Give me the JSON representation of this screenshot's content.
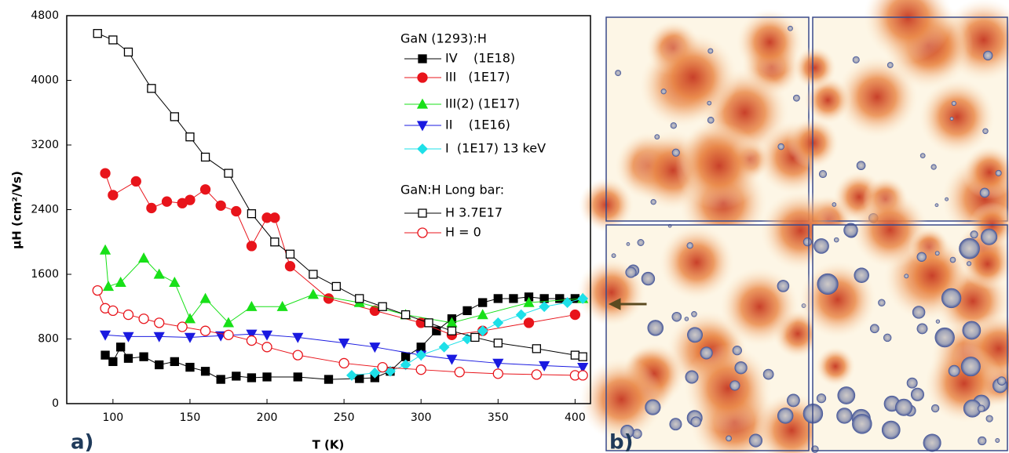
{
  "chart_data": {
    "type": "scatter",
    "x_label": "T (K)",
    "y_label": "μH (cm²/Vs)",
    "panel_labels": [
      "a)",
      "b)"
    ],
    "legend_titles": [
      "GaN (1293):H",
      "GaN:H    Long bar:"
    ],
    "xlim": [
      70,
      410
    ],
    "xticks": [
      100,
      150,
      200,
      250,
      300,
      350,
      400
    ],
    "ylim": [
      0,
      4800
    ],
    "yticks": [
      0,
      800,
      1600,
      2400,
      3200,
      4000,
      4800
    ],
    "series": [
      {
        "name": "IV    (1E18)",
        "color": "#000000",
        "marker": "square",
        "filled": true,
        "group": 0,
        "x": [
          95,
          100,
          105,
          110,
          120,
          130,
          140,
          150,
          160,
          170,
          180,
          190,
          200,
          220,
          240,
          260,
          270,
          280,
          290,
          300,
          310,
          320,
          330,
          340,
          350,
          360,
          370,
          380,
          390,
          400
        ],
        "values": [
          600,
          520,
          700,
          560,
          580,
          480,
          520,
          450,
          400,
          300,
          340,
          320,
          330,
          330,
          300,
          310,
          320,
          400,
          580,
          700,
          900,
          1050,
          1150,
          1250,
          1300,
          1300,
          1320,
          1300,
          1300,
          1300
        ]
      },
      {
        "name": "III   (1E17)",
        "color": "#e8141b",
        "marker": "circle",
        "filled": true,
        "group": 0,
        "x": [
          95,
          100,
          115,
          125,
          135,
          145,
          150,
          160,
          170,
          180,
          190,
          200,
          205,
          215,
          240,
          270,
          300,
          320,
          340,
          370,
          400
        ],
        "values": [
          2850,
          2580,
          2750,
          2420,
          2500,
          2480,
          2520,
          2650,
          2450,
          2380,
          1950,
          2300,
          2300,
          1700,
          1300,
          1150,
          1000,
          850,
          900,
          1000,
          1100
        ]
      },
      {
        "name": "III(2) (1E17)",
        "color": "#18e018",
        "marker": "triangle-up",
        "filled": true,
        "group": 0,
        "x": [
          95,
          97,
          105,
          120,
          130,
          140,
          150,
          160,
          175,
          190,
          210,
          230,
          260,
          290,
          320,
          340,
          370,
          405
        ],
        "values": [
          1900,
          1450,
          1500,
          1800,
          1600,
          1500,
          1050,
          1300,
          1000,
          1200,
          1200,
          1350,
          1250,
          1100,
          1000,
          1100,
          1250,
          1300
        ]
      },
      {
        "name": "II    (1E16)",
        "color": "#1a1ae0",
        "marker": "triangle-down",
        "filled": true,
        "group": 0,
        "x": [
          95,
          110,
          130,
          150,
          170,
          190,
          200,
          220,
          250,
          270,
          300,
          320,
          350,
          380,
          405
        ],
        "values": [
          850,
          830,
          830,
          820,
          840,
          860,
          850,
          820,
          750,
          700,
          600,
          550,
          500,
          470,
          450
        ]
      },
      {
        "name": "I  (1E17) 13 keV",
        "color": "#1ee0e8",
        "marker": "diamond",
        "filled": true,
        "group": 0,
        "x": [
          255,
          270,
          280,
          290,
          300,
          315,
          330,
          340,
          350,
          365,
          380,
          395,
          405
        ],
        "values": [
          350,
          380,
          400,
          480,
          600,
          700,
          800,
          900,
          1000,
          1100,
          1200,
          1250,
          1300
        ]
      },
      {
        "name": "H 3.7E17",
        "color": "#000000",
        "marker": "square",
        "filled": false,
        "group": 1,
        "x": [
          90,
          100,
          110,
          125,
          140,
          150,
          160,
          175,
          190,
          205,
          215,
          230,
          245,
          260,
          275,
          290,
          305,
          320,
          335,
          350,
          375,
          400,
          405
        ],
        "values": [
          4580,
          4500,
          4350,
          3900,
          3550,
          3300,
          3050,
          2850,
          2350,
          2000,
          1850,
          1600,
          1450,
          1300,
          1200,
          1100,
          1000,
          900,
          820,
          750,
          680,
          600,
          580
        ]
      },
      {
        "name": "H = 0",
        "color": "#e8141b",
        "marker": "circle",
        "filled": false,
        "group": 1,
        "x": [
          90,
          95,
          100,
          110,
          120,
          130,
          145,
          160,
          175,
          190,
          200,
          220,
          250,
          275,
          300,
          325,
          350,
          375,
          400,
          405
        ],
        "values": [
          1400,
          1180,
          1150,
          1100,
          1050,
          1000,
          950,
          900,
          850,
          780,
          700,
          600,
          500,
          450,
          420,
          390,
          370,
          360,
          350,
          350
        ]
      }
    ]
  }
}
